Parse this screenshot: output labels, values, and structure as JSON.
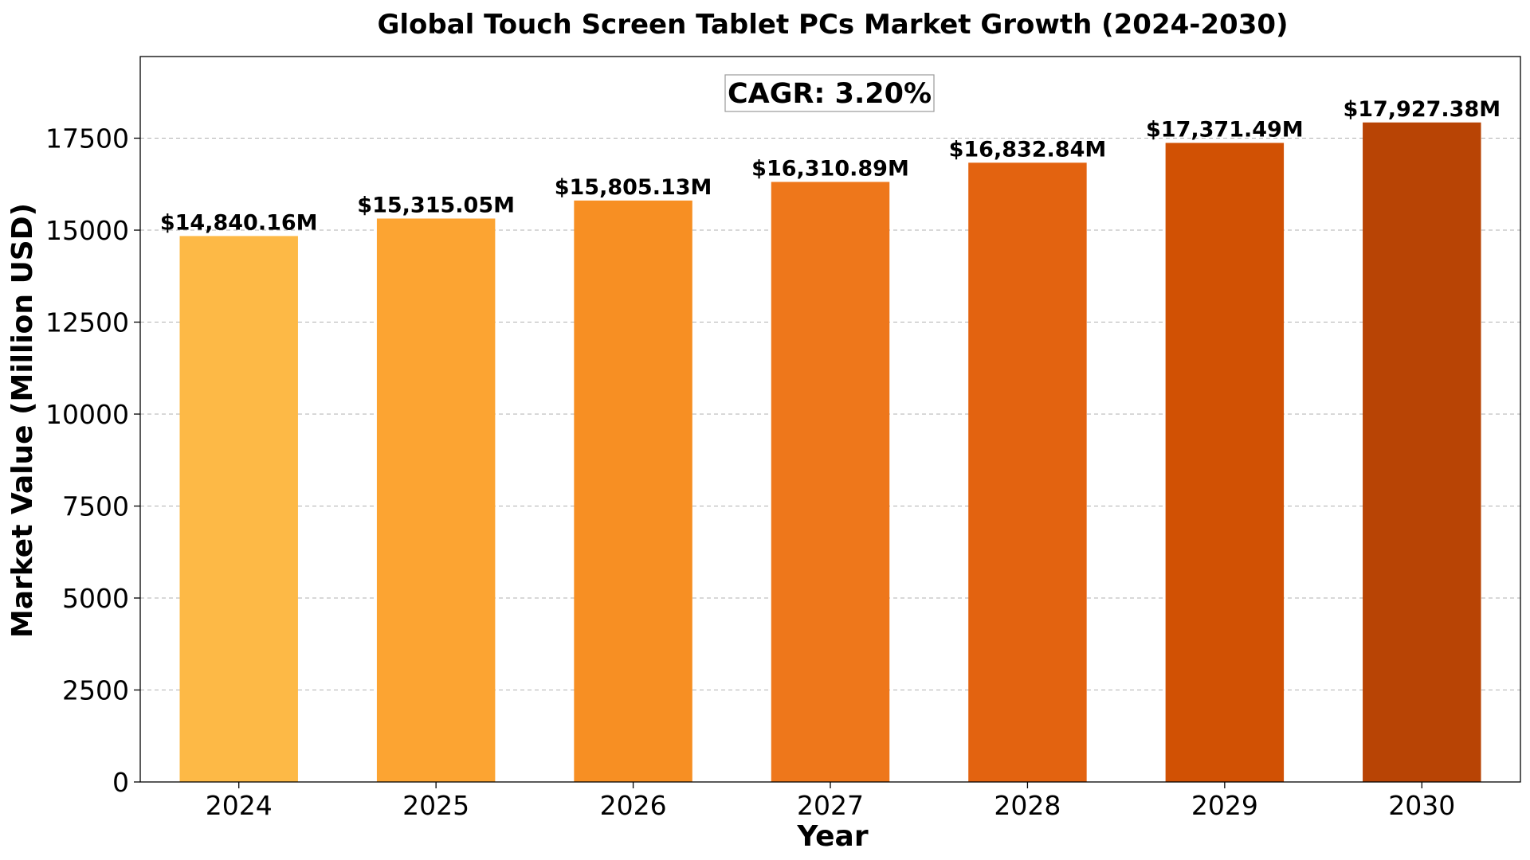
{
  "chart_data": {
    "type": "bar",
    "title": "Global Touch Screen Tablet PCs Market Growth (2024-2030)",
    "xlabel": "Year",
    "ylabel": "Market Value (Million USD)",
    "categories": [
      "2024",
      "2025",
      "2026",
      "2027",
      "2028",
      "2029",
      "2030"
    ],
    "values": [
      14840.16,
      15315.05,
      15805.13,
      16310.89,
      16832.84,
      17371.49,
      17927.38
    ],
    "value_labels": [
      "$14,840.16M",
      "$15,315.05M",
      "$15,805.13M",
      "$16,310.89M",
      "$16,832.84M",
      "$17,371.49M",
      "$17,927.38M"
    ],
    "colors": [
      "#FDB946",
      "#FCA432",
      "#F78F23",
      "#EE771B",
      "#E36310",
      "#D15104",
      "#B84405"
    ],
    "ylim": [
      0,
      19719
    ],
    "yticks": [
      0,
      2500,
      5000,
      7500,
      10000,
      12500,
      15000,
      17500
    ],
    "ytick_labels": [
      "0",
      "2500",
      "5000",
      "7500",
      "10000",
      "12500",
      "15000",
      "17500"
    ],
    "grid": "y-dashed",
    "annotation": "CAGR: 3.20%"
  }
}
